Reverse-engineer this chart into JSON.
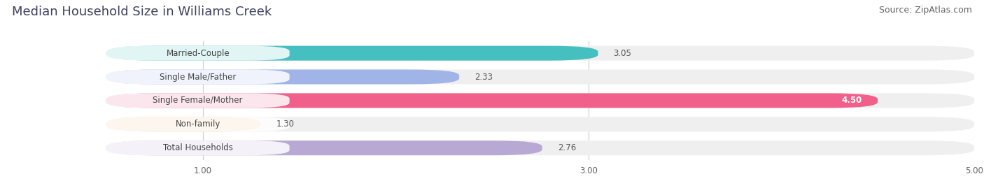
{
  "title": "Median Household Size in Williams Creek",
  "source": "Source: ZipAtlas.com",
  "categories": [
    "Married-Couple",
    "Single Male/Father",
    "Single Female/Mother",
    "Non-family",
    "Total Households"
  ],
  "values": [
    3.05,
    2.33,
    4.5,
    1.3,
    2.76
  ],
  "bar_colors": [
    "#45BFBF",
    "#A0B4E8",
    "#F0608A",
    "#F5C89A",
    "#B8A8D4"
  ],
  "bar_bg_color": "#EFEFEF",
  "background_color": "#FFFFFF",
  "xlim_data": [
    0.0,
    5.0
  ],
  "xstart": 0.5,
  "xticks": [
    1.0,
    3.0,
    5.0
  ],
  "title_fontsize": 13,
  "source_fontsize": 9,
  "label_fontsize": 8.5,
  "value_fontsize": 8.5,
  "bar_height": 0.62,
  "value_4_50_color": "#FFFFFF"
}
